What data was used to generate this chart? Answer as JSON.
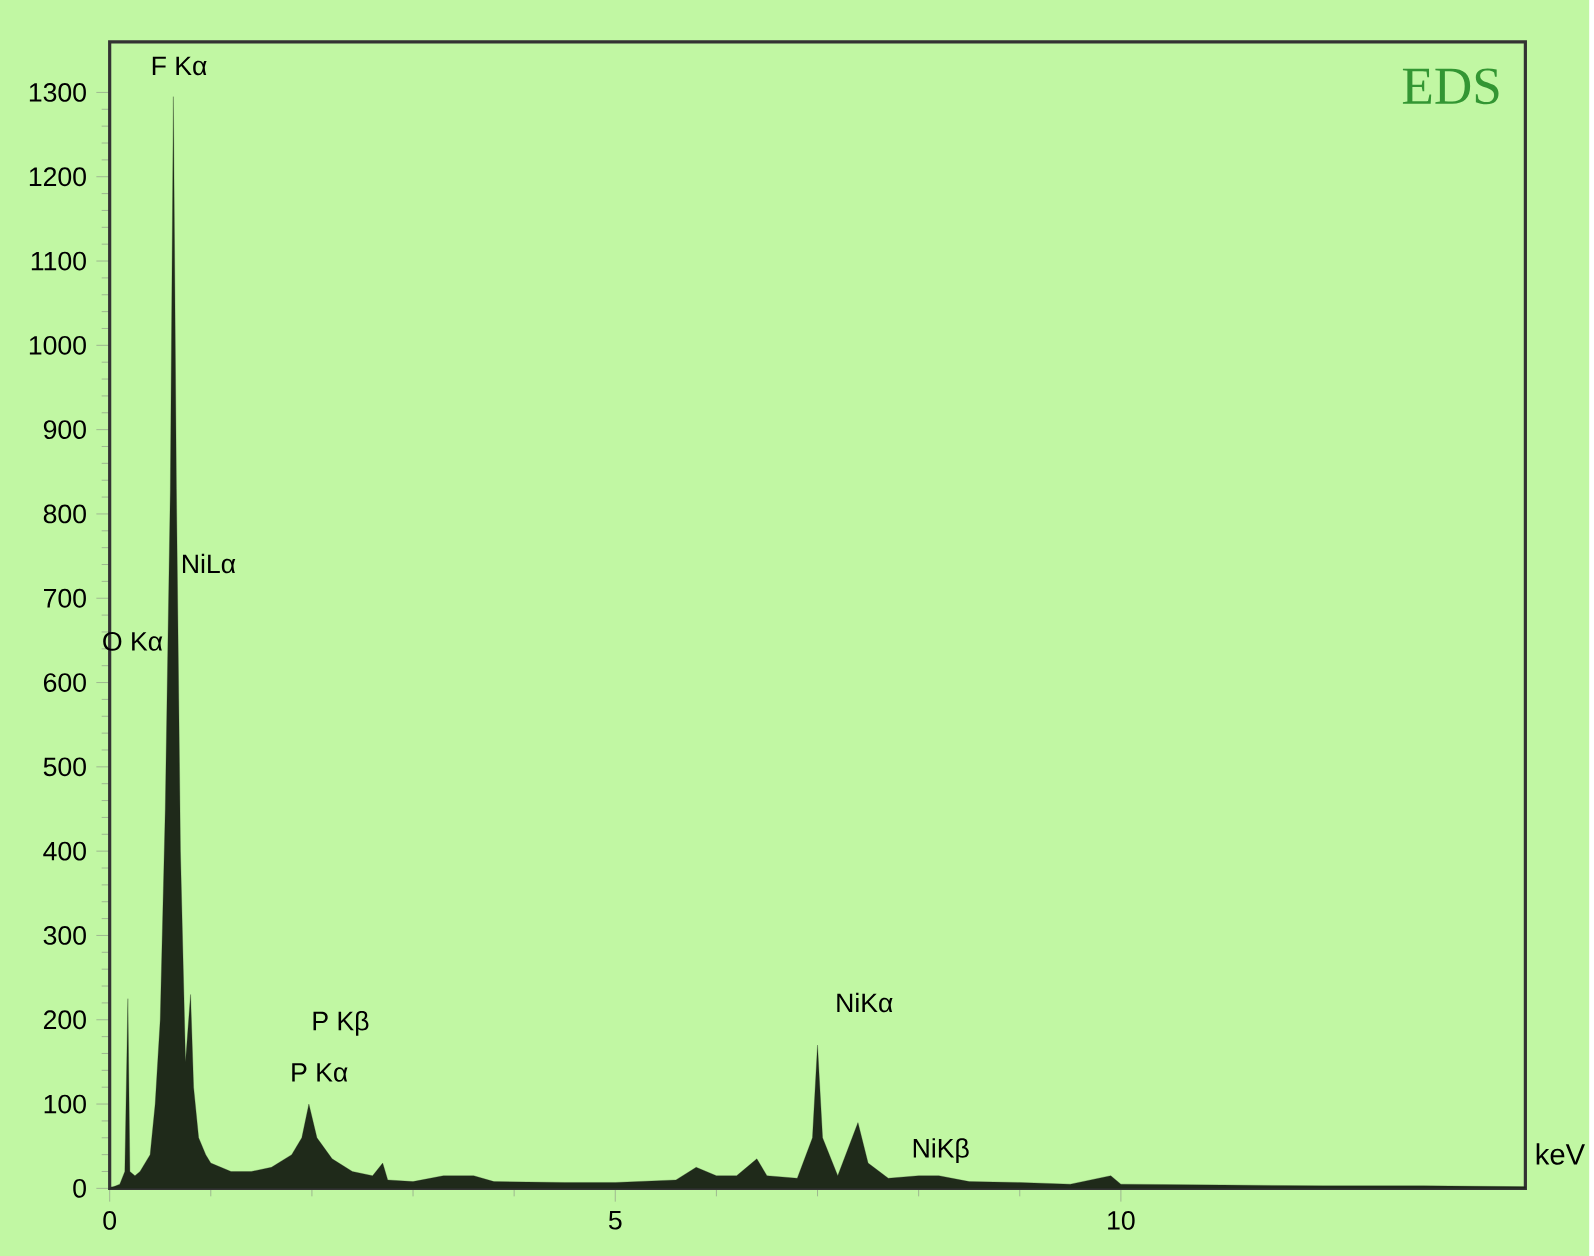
{
  "chart_data": {
    "type": "area",
    "title": "EDS",
    "xlabel": "keV",
    "x": [
      0.0,
      0.1,
      0.15,
      0.18,
      0.2,
      0.25,
      0.3,
      0.4,
      0.45,
      0.5,
      0.55,
      0.6,
      0.63,
      0.66,
      0.7,
      0.75,
      0.8,
      0.83,
      0.88,
      0.95,
      1.0,
      1.1,
      1.2,
      1.4,
      1.6,
      1.8,
      1.9,
      1.97,
      2.05,
      2.2,
      2.4,
      2.6,
      2.7,
      2.75,
      3.0,
      3.3,
      3.6,
      3.8,
      4.5,
      5.0,
      5.6,
      5.8,
      6.0,
      6.2,
      6.4,
      6.5,
      6.8,
      6.95,
      7.0,
      7.05,
      7.2,
      7.4,
      7.5,
      7.7,
      8.0,
      8.2,
      8.5,
      9.0,
      9.5,
      9.9,
      10.0,
      11.0,
      12.0,
      13.0,
      14.0
    ],
    "values": [
      0,
      5,
      20,
      225,
      20,
      15,
      20,
      40,
      100,
      200,
      450,
      830,
      1295,
      830,
      400,
      150,
      230,
      120,
      60,
      40,
      30,
      25,
      20,
      20,
      25,
      40,
      60,
      100,
      60,
      35,
      20,
      15,
      30,
      10,
      8,
      15,
      15,
      8,
      7,
      7,
      10,
      25,
      15,
      15,
      35,
      15,
      12,
      60,
      170,
      60,
      15,
      78,
      30,
      12,
      15,
      15,
      8,
      7,
      5,
      15,
      5,
      4,
      3,
      3,
      2
    ],
    "color": "#1f2a1a",
    "xlim": [
      0,
      14
    ],
    "ylim": [
      0,
      1360
    ],
    "xticks": [
      0,
      5,
      10
    ],
    "yticks": [
      0,
      100,
      200,
      300,
      400,
      500,
      600,
      700,
      800,
      900,
      1000,
      1100,
      1200,
      1300
    ],
    "annotations": [
      "F Kα",
      "NiLα",
      "O Kα",
      "P Kβ",
      "P Kα",
      "NiKα",
      "NiKβ"
    ]
  }
}
